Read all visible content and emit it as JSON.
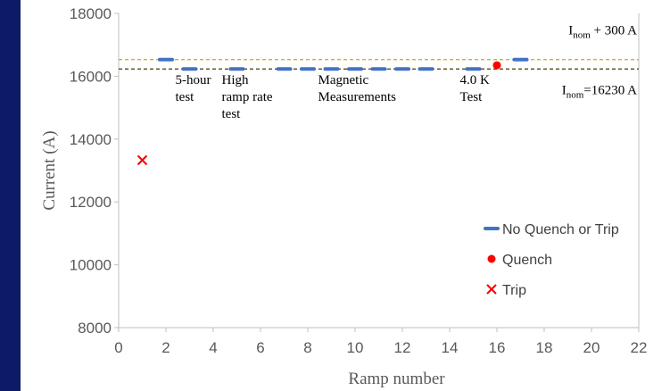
{
  "chart_data": {
    "type": "scatter",
    "xlabel": "Ramp number",
    "ylabel": "Current (A)",
    "xlim": [
      0,
      22
    ],
    "ylim": [
      8000,
      18000
    ],
    "xticks": [
      "0",
      "2",
      "4",
      "6",
      "8",
      "10",
      "12",
      "14",
      "16",
      "18",
      "20",
      "22"
    ],
    "yticks": [
      "8000",
      "10000",
      "12000",
      "14000",
      "16000",
      "18000"
    ],
    "grid": false,
    "legend_position": "bottom-right",
    "reference_lines": [
      {
        "y": 16530,
        "color": "#d4a017",
        "style": "dashed",
        "label_main": "I",
        "label_sub": "nom",
        "label_rest": " + 300 A"
      },
      {
        "y": 16230,
        "color": "#5a4a10",
        "style": "dashed",
        "label_main": "I",
        "label_sub": "nom",
        "label_rest": "=16230 A"
      }
    ],
    "series": [
      {
        "name": "No Quench or Trip",
        "marker": "dash",
        "color": "#4472c4",
        "points": [
          [
            2,
            16530
          ],
          [
            3,
            16230
          ],
          [
            5,
            16230
          ],
          [
            7,
            16230
          ],
          [
            8,
            16230
          ],
          [
            9,
            16230
          ],
          [
            10,
            16230
          ],
          [
            11,
            16230
          ],
          [
            12,
            16230
          ],
          [
            13,
            16230
          ],
          [
            15,
            16230
          ],
          [
            17,
            16530
          ]
        ]
      },
      {
        "name": "Quench",
        "marker": "circle",
        "color": "#ff0000",
        "points": [
          [
            16,
            16350
          ]
        ]
      },
      {
        "name": "Trip",
        "marker": "x",
        "color": "#ff0000",
        "points": [
          [
            1,
            13330
          ]
        ]
      }
    ],
    "annotations": [
      {
        "lines": [
          "5-hour",
          "test"
        ],
        "x": 3
      },
      {
        "lines": [
          "High",
          "ramp rate",
          "test"
        ],
        "x": 5
      },
      {
        "lines": [
          "Magnetic",
          "Measurements"
        ],
        "x": 9
      },
      {
        "lines": [
          "4.0 K",
          "Test"
        ],
        "x": 15
      }
    ]
  }
}
